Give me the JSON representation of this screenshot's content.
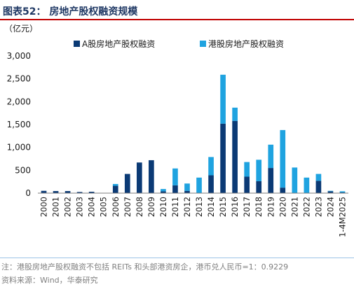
{
  "header": {
    "title": "图表52：  房地产股权融资规模"
  },
  "footer": {
    "note": "注：港股房地产股权融资不包括 REITs 和头部港资房企，港币兑人民币=1：0.9229",
    "source": "资料来源：Wind，华泰研究"
  },
  "colors": {
    "series_a": "#0b3a75",
    "series_hk": "#1fa3e0",
    "title": "#1f3864",
    "rule": "#c00000"
  },
  "chart_data": {
    "type": "bar",
    "stacked": true,
    "unit": "（亿元）",
    "categories": [
      "2000",
      "2001",
      "2002",
      "2003",
      "2004",
      "2005",
      "2006",
      "2007",
      "2008",
      "2009",
      "2010",
      "2011",
      "2012",
      "2013",
      "2014",
      "2015",
      "2016",
      "2017",
      "2018",
      "2019",
      "2020",
      "2021",
      "2022",
      "2023",
      "2024",
      "1-4M2025"
    ],
    "series": [
      {
        "name": "A股房地产股权融资",
        "color": "#0b3a75",
        "values": [
          50,
          45,
          45,
          25,
          30,
          0,
          160,
          420,
          670,
          720,
          40,
          170,
          50,
          0,
          390,
          1520,
          1580,
          360,
          260,
          550,
          120,
          0,
          0,
          270,
          40,
          15
        ]
      },
      {
        "name": "港股房地产股权融资",
        "color": "#1fa3e0",
        "values": [
          0,
          0,
          0,
          0,
          0,
          0,
          40,
          0,
          0,
          0,
          50,
          370,
          160,
          340,
          400,
          1070,
          290,
          320,
          470,
          510,
          1260,
          560,
          340,
          150,
          10,
          25
        ]
      }
    ],
    "ylim": [
      0,
      3000
    ],
    "yticks": [
      "0",
      "500",
      "1,000",
      "1,500",
      "2,000",
      "2,500",
      "3,000"
    ],
    "ytick_values": [
      0,
      500,
      1000,
      1500,
      2000,
      2500,
      3000
    ],
    "legend_position": "top",
    "grid": false
  }
}
